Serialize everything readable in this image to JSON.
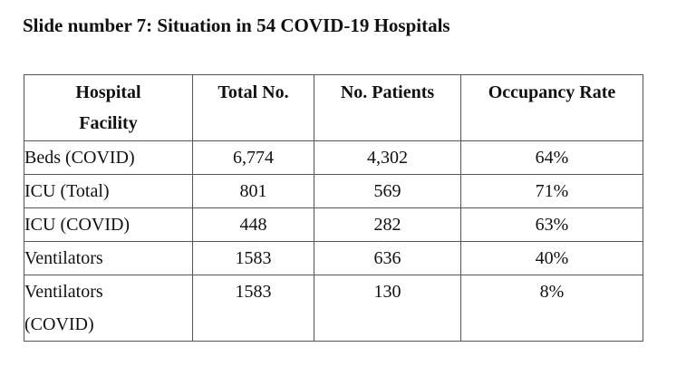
{
  "title": "Slide number 7: Situation in 54 COVID-19 Hospitals",
  "table": {
    "headers": [
      "Hospital Facility",
      "Total No.",
      "No. Patients",
      "Occupancy Rate"
    ],
    "rows": [
      {
        "facility": "Beds (COVID)",
        "total": "6,774",
        "patients": "4,302",
        "occupancy": "64%"
      },
      {
        "facility": "ICU (Total)",
        "total": "801",
        "patients": "569",
        "occupancy": "71%"
      },
      {
        "facility": "ICU (COVID)",
        "total": "448",
        "patients": "282",
        "occupancy": "63%"
      },
      {
        "facility": "Ventilators",
        "total": "1583",
        "patients": "636",
        "occupancy": "40%"
      },
      {
        "facility": "Ventilators (COVID)",
        "total": "1583",
        "patients": "130",
        "occupancy": "8%"
      }
    ]
  }
}
